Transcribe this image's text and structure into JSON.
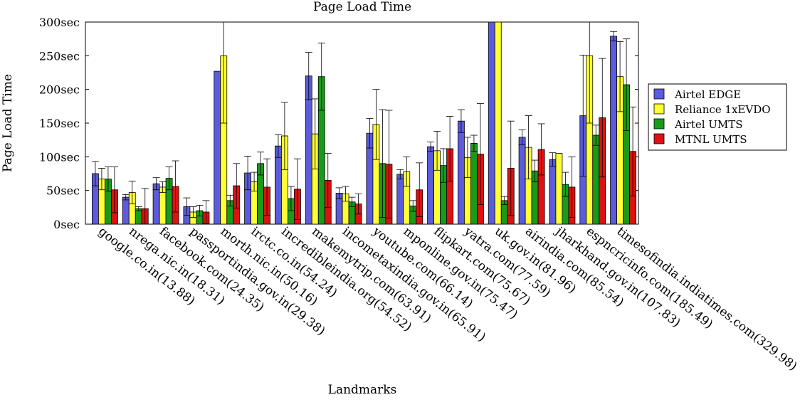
{
  "chart_data": {
    "type": "bar",
    "title": "Page Load Time",
    "xlabel": "Landmarks",
    "ylabel": "Page Load Time",
    "ylim": [
      0,
      300
    ],
    "yticks": [
      {
        "value": 0,
        "label": "0sec"
      },
      {
        "value": 50,
        "label": "50sec"
      },
      {
        "value": 100,
        "label": "100sec"
      },
      {
        "value": 150,
        "label": "150sec"
      },
      {
        "value": 200,
        "label": "200sec"
      },
      {
        "value": 250,
        "label": "250sec"
      },
      {
        "value": 300,
        "label": "300sec"
      }
    ],
    "grid": false,
    "legend_position": "right",
    "categories": [
      "google.co.in(13.88)",
      "nrega.nic.in(18.31)",
      "facebook.com(24.35)",
      "passportindia.gov.in(29.38)",
      "morth.nic.in(50.16)",
      "irctc.co.in(54.24)",
      "incredibleindia.org(54.52)",
      "makemytrip.com(63.91)",
      "incometaxindia.gov.in(65.91)",
      "youtube.com(66.14)",
      "mponline.gov.in(75.47)",
      "flipkart.com(75.67)",
      "yatra.com(77.59)",
      "uk.gov.in(81.96)",
      "airindia.com(85.54)",
      "jharkhand.gov.in(107.83)",
      "espncricinfo.com(185.49)",
      "timesofindia.indiatimes.com(329.98)"
    ],
    "series": [
      {
        "name": "Airtel EDGE",
        "color": "#5b5bdc",
        "values": [
          75,
          40,
          60,
          26,
          227,
          76,
          116,
          220,
          46,
          135,
          74,
          115,
          153,
          300,
          129,
          96,
          161,
          279
        ],
        "errors": [
          18,
          4,
          9,
          13,
          0,
          25,
          17,
          35,
          8,
          22,
          7,
          7,
          17,
          0,
          11,
          10,
          90,
          7
        ]
      },
      {
        "name": "Reliance 1xEVDO",
        "color": "#ffff33",
        "values": [
          67,
          47,
          55,
          18,
          250,
          63,
          131,
          134,
          45,
          148,
          78,
          109,
          99,
          300,
          114,
          105,
          250,
          219
        ],
        "errors": [
          16,
          17,
          8,
          8,
          100,
          14,
          50,
          52,
          11,
          52,
          22,
          29,
          30,
          0,
          47,
          0,
          100,
          52
        ]
      },
      {
        "name": "Airtel UMTS",
        "color": "#1a9a1a",
        "values": [
          67,
          23,
          68,
          20,
          35,
          90,
          38,
          219,
          33,
          90,
          27,
          87,
          120,
          35,
          79,
          59,
          132,
          207
        ],
        "errors": [
          18,
          3,
          17,
          8,
          8,
          17,
          18,
          50,
          7,
          80,
          8,
          25,
          12,
          6,
          16,
          18,
          15,
          68
        ]
      },
      {
        "name": "MTNL UMTS",
        "color": "#dd1111",
        "values": [
          51,
          23,
          56,
          18,
          57,
          55,
          52,
          65,
          30,
          89,
          51,
          112,
          104,
          83,
          111,
          55,
          158,
          108
        ],
        "errors": [
          34,
          30,
          38,
          17,
          33,
          42,
          45,
          40,
          15,
          80,
          40,
          48,
          75,
          70,
          38,
          45,
          88,
          66
        ]
      }
    ]
  }
}
